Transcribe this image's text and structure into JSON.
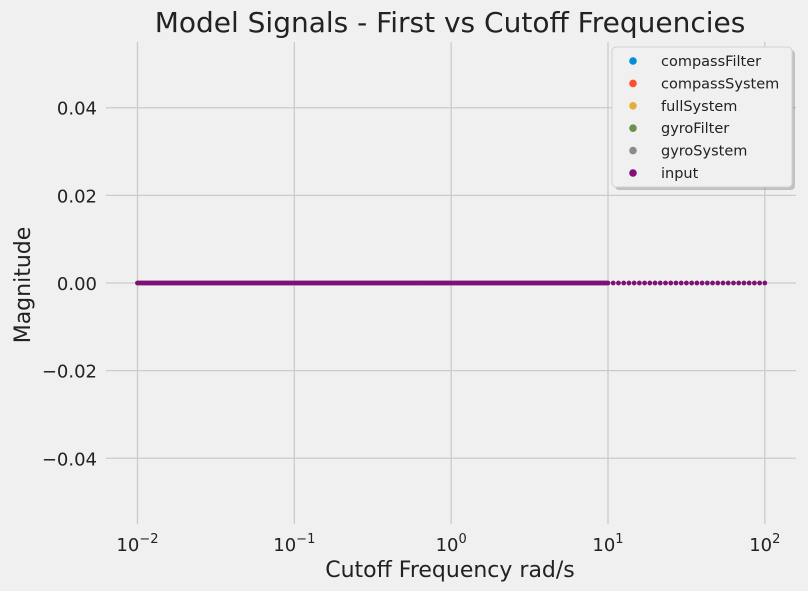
{
  "chart_data": {
    "type": "scatter",
    "title": "Model Signals - First vs Cutoff Frequencies",
    "xlabel": "Cutoff Frequency rad/s",
    "ylabel": "Magnitude",
    "xscale": "log",
    "xlim": [
      0.0063,
      158
    ],
    "ylim": [
      -0.055,
      0.055
    ],
    "grid": true,
    "legend_position": "top-right",
    "x_ticks": [
      {
        "base": "10",
        "exp": "−2",
        "value": 0.01
      },
      {
        "base": "10",
        "exp": "−1",
        "value": 0.1
      },
      {
        "base": "10",
        "exp": "0",
        "value": 1
      },
      {
        "base": "10",
        "exp": "1",
        "value": 10
      },
      {
        "base": "10",
        "exp": "2",
        "value": 100
      }
    ],
    "y_ticks": [
      {
        "label": "0.04",
        "value": 0.04
      },
      {
        "label": "0.02",
        "value": 0.02
      },
      {
        "label": "0.00",
        "value": 0.0
      },
      {
        "label": "−0.02",
        "value": -0.02
      },
      {
        "label": "−0.04",
        "value": -0.04
      }
    ],
    "sampling": {
      "x_start": 0.01,
      "x_stop": 100,
      "dense_until": 10,
      "dense_count": 400,
      "sparse_count": 30,
      "y_value": 0
    },
    "series": [
      {
        "name": "compassFilter",
        "color": "#008fd5"
      },
      {
        "name": "compassSystem",
        "color": "#fc4f30"
      },
      {
        "name": "fullSystem",
        "color": "#e5ae38"
      },
      {
        "name": "gyroFilter",
        "color": "#6d904f"
      },
      {
        "name": "gyroSystem",
        "color": "#8b8b8b"
      },
      {
        "name": "input",
        "color": "#810f7c"
      }
    ]
  }
}
